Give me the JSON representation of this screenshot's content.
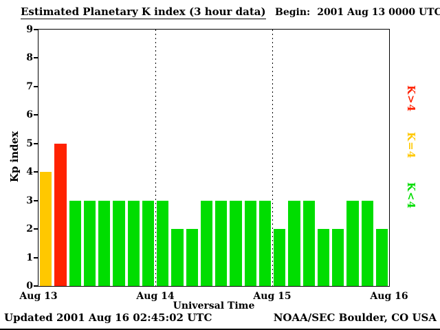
{
  "header": {
    "title": "Estimated Planetary K index (3 hour data)",
    "begin_label": "Begin:",
    "begin_value": "2001 Aug 13 0000 UTC"
  },
  "chart_data": {
    "type": "bar",
    "title": "Estimated Planetary K index (3 hour data)",
    "xlabel": "Universal Time",
    "ylabel": "Kp index",
    "ylim": [
      0,
      9
    ],
    "y_ticks": [
      0,
      1,
      2,
      3,
      4,
      5,
      6,
      7,
      8,
      9
    ],
    "x_ticks": [
      "Aug 13",
      "Aug 14",
      "Aug 15",
      "Aug 16"
    ],
    "bar_interval_hours": 3,
    "grid": "dotted vertical lines at day boundaries",
    "values": [
      4,
      5,
      3,
      3,
      3,
      3,
      3,
      3,
      3,
      2,
      2,
      3,
      3,
      3,
      3,
      3,
      2,
      3,
      3,
      2,
      2,
      3,
      3,
      2
    ],
    "colors": {
      "low": "#00DD00",
      "mid": "#FFC800",
      "high": "#FF2200"
    },
    "color_rule": "green if K<4, yellow if K=4, red if K>4",
    "legend": [
      {
        "label": "K>4",
        "color": "#FF2200"
      },
      {
        "label": "K=4",
        "color": "#FFC800"
      },
      {
        "label": "K<4",
        "color": "#00DD00"
      }
    ],
    "legend_position": "right, rotated vertical"
  },
  "footer": {
    "updated": "Updated 2001 Aug 16 02:45:02 UTC",
    "source": "NOAA/SEC Boulder, CO USA"
  }
}
